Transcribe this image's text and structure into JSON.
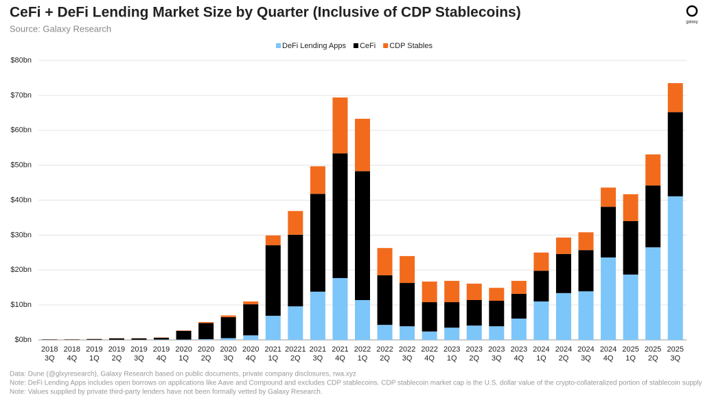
{
  "chart_data": {
    "type": "stacked-bar",
    "title": "CeFi + DeFi Lending Market Size by Quarter (Inclusive of CDP Stablecoins)",
    "subtitle": "Source: Galaxy Research",
    "logo": "galaxy",
    "categories": [
      [
        "2018",
        "3Q"
      ],
      [
        "2018",
        "4Q"
      ],
      [
        "2019",
        "1Q"
      ],
      [
        "2019",
        "2Q"
      ],
      [
        "2019",
        "3Q"
      ],
      [
        "2019",
        "4Q"
      ],
      [
        "2020",
        "1Q"
      ],
      [
        "2020",
        "2Q"
      ],
      [
        "2020",
        "3Q"
      ],
      [
        "2020",
        "4Q"
      ],
      [
        "2021",
        "1Q"
      ],
      [
        "20221",
        "2Q"
      ],
      [
        "2021",
        "3Q"
      ],
      [
        "2021",
        "4Q"
      ],
      [
        "2022",
        "1Q"
      ],
      [
        "2022",
        "2Q"
      ],
      [
        "2022",
        "3Q"
      ],
      [
        "2022",
        "4Q"
      ],
      [
        "2023",
        "1Q"
      ],
      [
        "2023",
        "2Q"
      ],
      [
        "2023",
        "3Q"
      ],
      [
        "2023",
        "4Q"
      ],
      [
        "2024",
        "1Q"
      ],
      [
        "2024",
        "2Q"
      ],
      [
        "2024",
        "3Q"
      ],
      [
        "2024",
        "4Q"
      ],
      [
        "2025",
        "1Q"
      ],
      [
        "2025",
        "2Q"
      ],
      [
        "2025",
        "3Q"
      ]
    ],
    "series": [
      {
        "name": "DeFi Lending Apps",
        "color": "#7cc6fa",
        "values": [
          0.05,
          0.05,
          0.05,
          0.05,
          0.05,
          0.1,
          0.1,
          0.2,
          0.5,
          1.3,
          6.9,
          9.6,
          13.8,
          17.7,
          11.4,
          4.3,
          3.9,
          2.4,
          3.5,
          4.1,
          3.9,
          6.1,
          11.0,
          13.4,
          13.9,
          23.6,
          18.7,
          26.5,
          41.1
        ]
      },
      {
        "name": "CeFi",
        "color": "#000000",
        "values": [
          0.1,
          0.1,
          0.2,
          0.4,
          0.4,
          0.5,
          2.5,
          4.6,
          6.0,
          8.9,
          20.2,
          20.5,
          28.0,
          35.7,
          36.9,
          14.2,
          12.4,
          8.4,
          7.3,
          7.3,
          7.3,
          7.1,
          8.8,
          11.2,
          11.8,
          14.5,
          15.3,
          17.7,
          24.1
        ]
      },
      {
        "name": "CDP Stables",
        "color": "#f26b1d",
        "values": [
          0.05,
          0.05,
          0.05,
          0.05,
          0.05,
          0.1,
          0.1,
          0.3,
          0.5,
          0.8,
          2.8,
          6.8,
          7.9,
          16.0,
          15.0,
          7.8,
          7.7,
          5.9,
          6.1,
          4.7,
          3.7,
          3.7,
          5.2,
          4.7,
          5.1,
          5.5,
          7.7,
          8.9,
          8.3
        ]
      }
    ],
    "ylim": [
      0,
      80
    ],
    "yticks": [
      {
        "value": 0,
        "label": "$0bn"
      },
      {
        "value": 10,
        "label": "$10bn"
      },
      {
        "value": 20,
        "label": "$20bn"
      },
      {
        "value": 30,
        "label": "$30bn"
      },
      {
        "value": 40,
        "label": "$40bn"
      },
      {
        "value": 50,
        "label": "$50bn"
      },
      {
        "value": 60,
        "label": "$60bn"
      },
      {
        "value": 70,
        "label": "$70bn"
      },
      {
        "value": 80,
        "label": "$80bn"
      }
    ],
    "grid": true,
    "legend": "top",
    "notes": [
      "Data: Dune (@glxyresearch), Galaxy Research based on public documents, private company disclosures, rwa.xyz",
      "Note: DeFi Lending Apps includes open borrows on applications like Aave and Compound and excludes CDP stablecoins. CDP stablecoin market cap is the U.S. dollar value of the crypto-collateralized portion of stablecoin supply",
      "Note: Values supplied by private third-party lenders have not been formally vetted  by Galaxy Research."
    ]
  }
}
